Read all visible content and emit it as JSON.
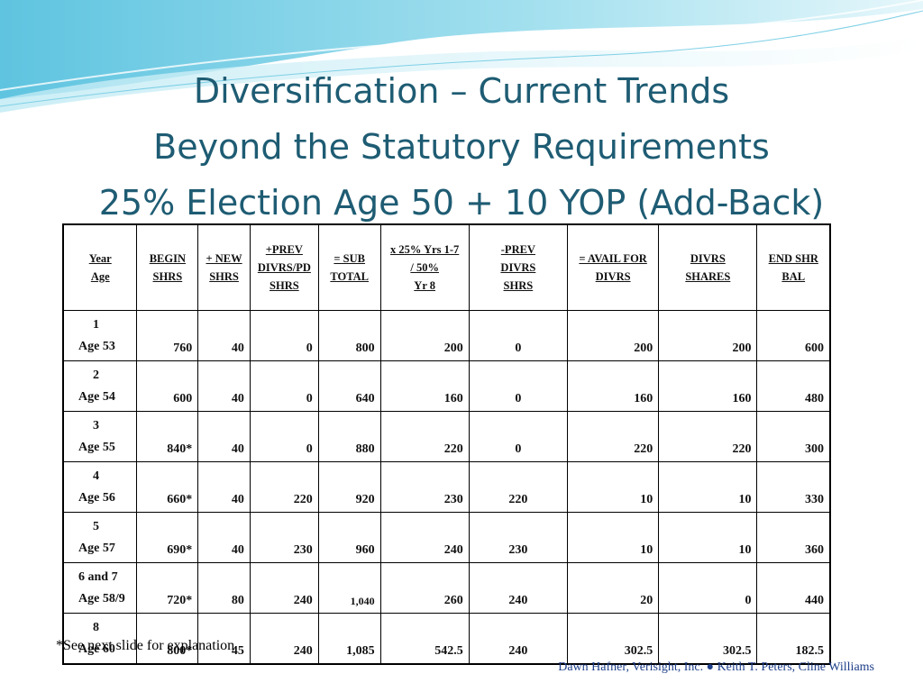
{
  "title": {
    "line1": "Diversification – Current Trends",
    "line2": "Beyond the Statutory Requirements",
    "line3": "25% Election Age 50 + 10 YOP (Add-Back)"
  },
  "table": {
    "headers": [
      [
        "Year",
        "Age"
      ],
      [
        "BEGIN",
        "SHRS"
      ],
      [
        "+ NEW",
        "SHRS"
      ],
      [
        "+PREV",
        "DIVRS/PD",
        "SHRS"
      ],
      [
        "= SUB",
        "TOTAL"
      ],
      [
        "x 25% Yrs 1-7",
        "/ 50%",
        "Yr 8"
      ],
      [
        "-PREV",
        "DIVRS",
        "SHRS"
      ],
      [
        "= AVAIL FOR",
        "DIVRS"
      ],
      [
        "DIVRS",
        "SHARES"
      ],
      [
        "END SHR",
        "BAL"
      ]
    ],
    "rows": [
      {
        "year": "1",
        "age": "Age 53",
        "cells": [
          "760",
          "40",
          "0",
          "800",
          "200",
          "0",
          "200",
          "200",
          "600"
        ]
      },
      {
        "year": "2",
        "age": "Age 54",
        "cells": [
          "600",
          "40",
          "0",
          "640",
          "160",
          "0",
          "160",
          "160",
          "480"
        ]
      },
      {
        "year": "3",
        "age": "Age 55",
        "cells": [
          "840*",
          "40",
          "0",
          "880",
          "220",
          "0",
          "220",
          "220",
          "300"
        ]
      },
      {
        "year": "4",
        "age": "Age 56",
        "cells": [
          "660*",
          "40",
          "220",
          "920",
          "230",
          "220",
          "10",
          "10",
          "330"
        ]
      },
      {
        "year": "5",
        "age": "Age 57",
        "cells": [
          "690*",
          "40",
          "230",
          "960",
          "240",
          "230",
          "10",
          "10",
          "360"
        ]
      },
      {
        "year": "6 and 7",
        "age": "Age 58/9",
        "cells": [
          "720*",
          "80",
          "240",
          "1,040",
          "260",
          "240",
          "20",
          "0",
          "440"
        ]
      },
      {
        "year": "8",
        "age": "Age 60",
        "cells": [
          "800*",
          "45",
          "240",
          "1,085",
          "542.5",
          "240",
          "302.5",
          "302.5",
          "182.5"
        ]
      }
    ]
  },
  "footnote": "*See next slide for explanation",
  "footer": "Dawn Hafner, Verisight, Inc.  ●  Keith T. Peters, Cline Williams"
}
